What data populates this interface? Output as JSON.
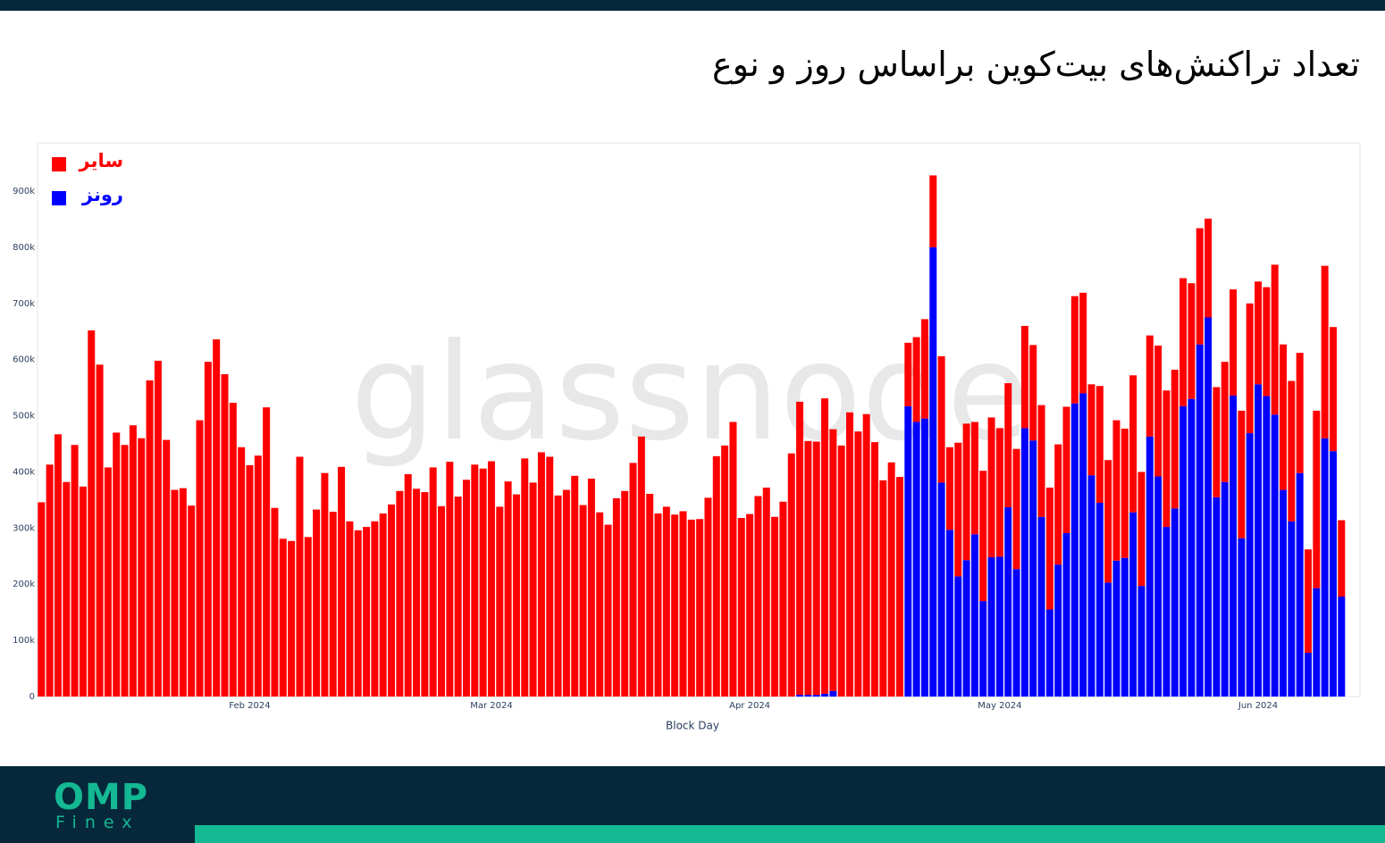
{
  "chart_data": {
    "type": "stacked-bar",
    "title": "تعداد تراکنش‌های بیت‌کوین براساس روز و نوع",
    "watermark": "glassnode",
    "x_label": "Block Day",
    "categories": [
      null,
      null,
      null,
      null,
      null,
      null,
      null,
      null,
      null,
      null,
      null,
      null,
      null,
      null,
      null,
      null,
      null,
      null,
      null,
      null,
      null,
      null,
      null,
      null,
      null,
      "Feb 2024",
      null,
      null,
      null,
      null,
      null,
      null,
      null,
      null,
      null,
      null,
      null,
      null,
      null,
      null,
      null,
      null,
      null,
      null,
      null,
      null,
      null,
      null,
      null,
      null,
      null,
      null,
      null,
      null,
      "Mar 2024",
      null,
      null,
      null,
      null,
      null,
      null,
      null,
      null,
      null,
      null,
      null,
      null,
      null,
      null,
      null,
      null,
      null,
      null,
      null,
      null,
      null,
      null,
      null,
      null,
      null,
      null,
      null,
      null,
      null,
      null,
      "Apr 2024",
      null,
      null,
      null,
      null,
      null,
      null,
      null,
      null,
      null,
      null,
      null,
      null,
      null,
      null,
      null,
      null,
      null,
      null,
      null,
      null,
      null,
      null,
      null,
      null,
      null,
      null,
      null,
      null,
      null,
      "May 2024",
      null,
      null,
      null,
      null,
      null,
      null,
      null,
      null,
      null,
      null,
      null,
      null,
      null,
      null,
      null,
      null,
      null,
      null,
      null,
      null,
      null,
      null,
      null,
      null,
      null,
      null,
      null,
      null,
      null,
      null,
      "Jun 2024",
      null,
      null,
      null,
      null,
      null,
      null,
      null,
      null,
      null,
      null
    ],
    "series": [
      {
        "name": "رونز",
        "color": "#0000ff",
        "values": [
          0,
          0,
          0,
          0,
          0,
          0,
          0,
          0,
          0,
          0,
          0,
          0,
          0,
          0,
          0,
          0,
          0,
          0,
          0,
          0,
          0,
          0,
          0,
          0,
          0,
          0,
          0,
          0,
          0,
          0,
          0,
          0,
          0,
          0,
          0,
          0,
          0,
          0,
          0,
          0,
          0,
          0,
          0,
          0,
          0,
          0,
          0,
          0,
          0,
          0,
          0,
          0,
          0,
          0,
          0,
          0,
          0,
          0,
          0,
          0,
          0,
          0,
          0,
          0,
          0,
          0,
          0,
          0,
          0,
          0,
          0,
          0,
          0,
          0,
          0,
          0,
          0,
          0,
          0,
          0,
          0,
          0,
          0,
          0,
          0,
          0,
          0,
          0,
          0,
          0,
          0,
          3000,
          3000,
          3000,
          5000,
          10000,
          0,
          0,
          0,
          0,
          0,
          0,
          0,
          0,
          517000,
          489000,
          495000,
          800000,
          381000,
          297000,
          214000,
          243000,
          289000,
          170000,
          248000,
          249000,
          337000,
          227000,
          478000,
          456000,
          320000,
          155000,
          235000,
          291000,
          522000,
          540000,
          394000,
          345000,
          203000,
          242000,
          247000,
          328000,
          197000,
          463000,
          392000,
          302000,
          335000,
          517000,
          530000,
          627000,
          675000,
          355000,
          382000,
          536000,
          282000,
          469000,
          556000,
          535000,
          502000,
          368000,
          312000,
          398000,
          78000,
          193000,
          460000,
          437000,
          178000
        ]
      },
      {
        "name": "سایر",
        "color": "#ff0000",
        "values": [
          346000,
          413000,
          467000,
          382000,
          448000,
          374000,
          652000,
          591000,
          408000,
          470000,
          448000,
          483000,
          460000,
          563000,
          598000,
          457000,
          368000,
          371000,
          340000,
          492000,
          596000,
          636000,
          574000,
          523000,
          444000,
          412000,
          429000,
          515000,
          336000,
          281000,
          277000,
          427000,
          284000,
          333000,
          398000,
          329000,
          409000,
          312000,
          296000,
          302000,
          312000,
          326000,
          342000,
          366000,
          396000,
          370000,
          364000,
          408000,
          339000,
          418000,
          356000,
          386000,
          413000,
          406000,
          419000,
          338000,
          383000,
          360000,
          424000,
          381000,
          435000,
          427000,
          358000,
          368000,
          393000,
          341000,
          388000,
          328000,
          306000,
          353000,
          366000,
          416000,
          463000,
          361000,
          326000,
          338000,
          324000,
          330000,
          315000,
          316000,
          354000,
          428000,
          447000,
          489000,
          318000,
          325000,
          357000,
          372000,
          320000,
          347000,
          433000,
          522000,
          452000,
          451000,
          526000,
          466000,
          447000,
          506000,
          472000,
          503000,
          453000,
          385000,
          417000,
          391000,
          113000,
          151000,
          177000,
          128000,
          225000,
          147000,
          238000,
          243000,
          200000,
          232000,
          249000,
          229000,
          221000,
          214000,
          182000,
          170000,
          199000,
          217000,
          214000,
          225000,
          191000,
          179000,
          162000,
          208000,
          218000,
          250000,
          230000,
          244000,
          203000,
          180000,
          233000,
          243000,
          247000,
          228000,
          206000,
          207000,
          176000,
          196000,
          214000,
          189000,
          227000,
          231000,
          183000,
          194000,
          267000,
          259000,
          250000,
          214000,
          184000,
          316000,
          307000,
          221000,
          136000
        ]
      }
    ],
    "ylim": [
      0,
      985900
    ],
    "yticks": [
      0,
      {
        "value": 100000,
        "label": "100k"
      },
      {
        "value": 200000,
        "label": "200k"
      },
      {
        "value": 300000,
        "label": "300k"
      },
      {
        "value": 400000,
        "label": "400k"
      },
      {
        "value": 500000,
        "label": "500k"
      },
      {
        "value": 600000,
        "label": "600k"
      },
      {
        "value": 700000,
        "label": "700k"
      },
      {
        "value": 800000,
        "label": "800k"
      },
      {
        "value": 900000,
        "label": "900k"
      }
    ],
    "grid": false,
    "legend": "top-left"
  },
  "footer": {
    "logo": "OMP",
    "logo_sub": "Finex"
  }
}
